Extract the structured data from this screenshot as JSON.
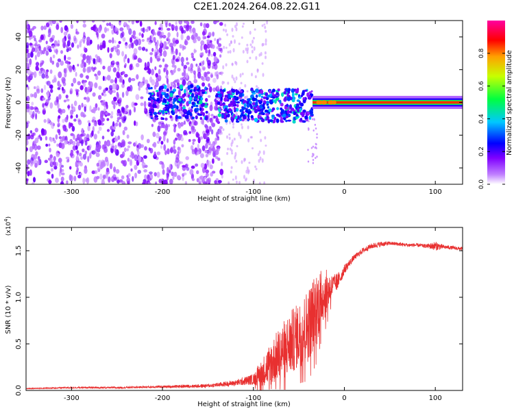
{
  "title": "C2E1.2024.264.08.22.G11",
  "chart_data": [
    {
      "type": "heatmap",
      "xlabel": "Height of straight line (km)",
      "ylabel": "Frequency (Hz)",
      "xlim": [
        -350,
        130
      ],
      "ylim": [
        -50,
        50
      ],
      "xticks": [
        -300,
        -200,
        -100,
        0,
        100
      ],
      "yticks": [
        -40,
        -20,
        0,
        20,
        40
      ],
      "colorbar": {
        "label": "Normalized spectral amplitude",
        "range": [
          0.0,
          1.0
        ],
        "ticks": [
          "0.0",
          "0.2",
          "0.4",
          "0.6",
          "0.8"
        ],
        "colors": [
          "#ffffff",
          "#8000ff",
          "#0000ff",
          "#00c8ff",
          "#00ff60",
          "#c8ff00",
          "#ffa000",
          "#ff0000",
          "#ff00a0"
        ]
      },
      "regions": [
        {
          "x_range": [
            -350,
            -135
          ],
          "freq_range": [
            -50,
            50
          ],
          "amplitude": 0.1,
          "description_color": "#7f1fff"
        },
        {
          "x_range": [
            -215,
            -150
          ],
          "freq_range": [
            -10,
            10
          ],
          "amplitude": 0.25
        },
        {
          "x_range": [
            -140,
            -35
          ],
          "freq_range": [
            -10,
            10
          ],
          "amplitude": 0.3
        },
        {
          "x_range": [
            -35,
            130
          ],
          "freq_range": [
            -1,
            1
          ],
          "amplitude": 0.85
        }
      ]
    },
    {
      "type": "line",
      "xlabel": "Height of straight line (km)",
      "ylabel": "SNR (10 * v/v)",
      "y_multiplier": "(x10^4)",
      "xlim": [
        -350,
        130
      ],
      "ylim": [
        0,
        1.75
      ],
      "xticks": [
        -300,
        -200,
        -100,
        0,
        100
      ],
      "yticks": [
        "0.0",
        "0.5",
        "1.0",
        "1.5"
      ],
      "series": [
        {
          "color": "#e83030",
          "x": [
            -350,
            -300,
            -250,
            -200,
            -150,
            -120,
            -100,
            -90,
            -80,
            -70,
            -60,
            -50,
            -40,
            -30,
            -25,
            -20,
            -15,
            -10,
            -5,
            0,
            10,
            20,
            30,
            40,
            50,
            60,
            70,
            80,
            90,
            100,
            110,
            120,
            130
          ],
          "y": [
            0.02,
            0.03,
            0.03,
            0.04,
            0.05,
            0.08,
            0.12,
            0.2,
            0.3,
            0.4,
            0.5,
            0.6,
            0.7,
            0.9,
            1.0,
            1.05,
            1.1,
            1.15,
            1.2,
            1.3,
            1.42,
            1.5,
            1.55,
            1.57,
            1.58,
            1.57,
            1.56,
            1.56,
            1.55,
            1.55,
            1.54,
            1.53,
            1.52
          ],
          "noise_amplitude": [
            0.005,
            0.008,
            0.01,
            0.012,
            0.02,
            0.03,
            0.06,
            0.15,
            0.25,
            0.3,
            0.35,
            0.35,
            0.4,
            0.4,
            0.3,
            0.25,
            0.15,
            0.1,
            0.08,
            0.05,
            0.03,
            0.03,
            0.03,
            0.03,
            0.02,
            0.02,
            0.02,
            0.02,
            0.02,
            0.05,
            0.02,
            0.02,
            0.02
          ]
        }
      ]
    }
  ]
}
